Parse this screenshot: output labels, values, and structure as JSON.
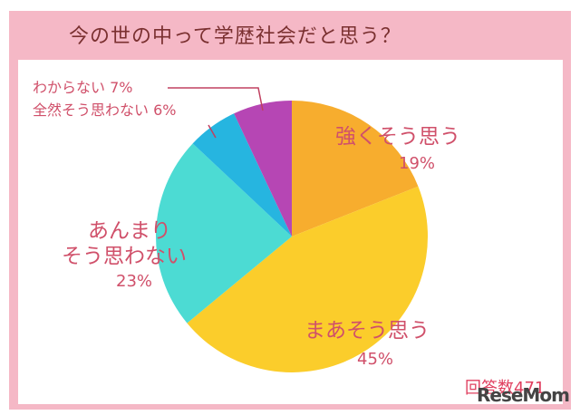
{
  "title": "今の世の中って学歴社会だと思う？",
  "respondents": "回答数471",
  "watermark": "ReseMom",
  "colors": {
    "frame": "#f5b8c6",
    "title": "#7a3030",
    "label": "#d0506a"
  },
  "chart_data": {
    "type": "pie",
    "title": "今の世の中って学歴社会だと思う？",
    "categories": [
      "強くそう思う",
      "まあそう思う",
      "あんまりそう思わない",
      "全然そう思わない",
      "わからない"
    ],
    "values": [
      19,
      45,
      23,
      6,
      7
    ],
    "unit": "%",
    "colors": [
      "#f7ad2e",
      "#fbcd2b",
      "#4cdbd3",
      "#26b5e0",
      "#b646b4"
    ],
    "start_angle": "12 o'clock, clockwise",
    "note": "回答数471"
  },
  "labels": {
    "strong_name": "強くそう思う",
    "strong_pct": "19%",
    "somewhat_name": "まあそう思う",
    "somewhat_pct": "45%",
    "notmuch_line1": "あんまり",
    "notmuch_line2": "そう思わない",
    "notmuch_pct": "23%",
    "dontknow": "わからない 7%",
    "notatall": "全然そう思わない 6%"
  }
}
